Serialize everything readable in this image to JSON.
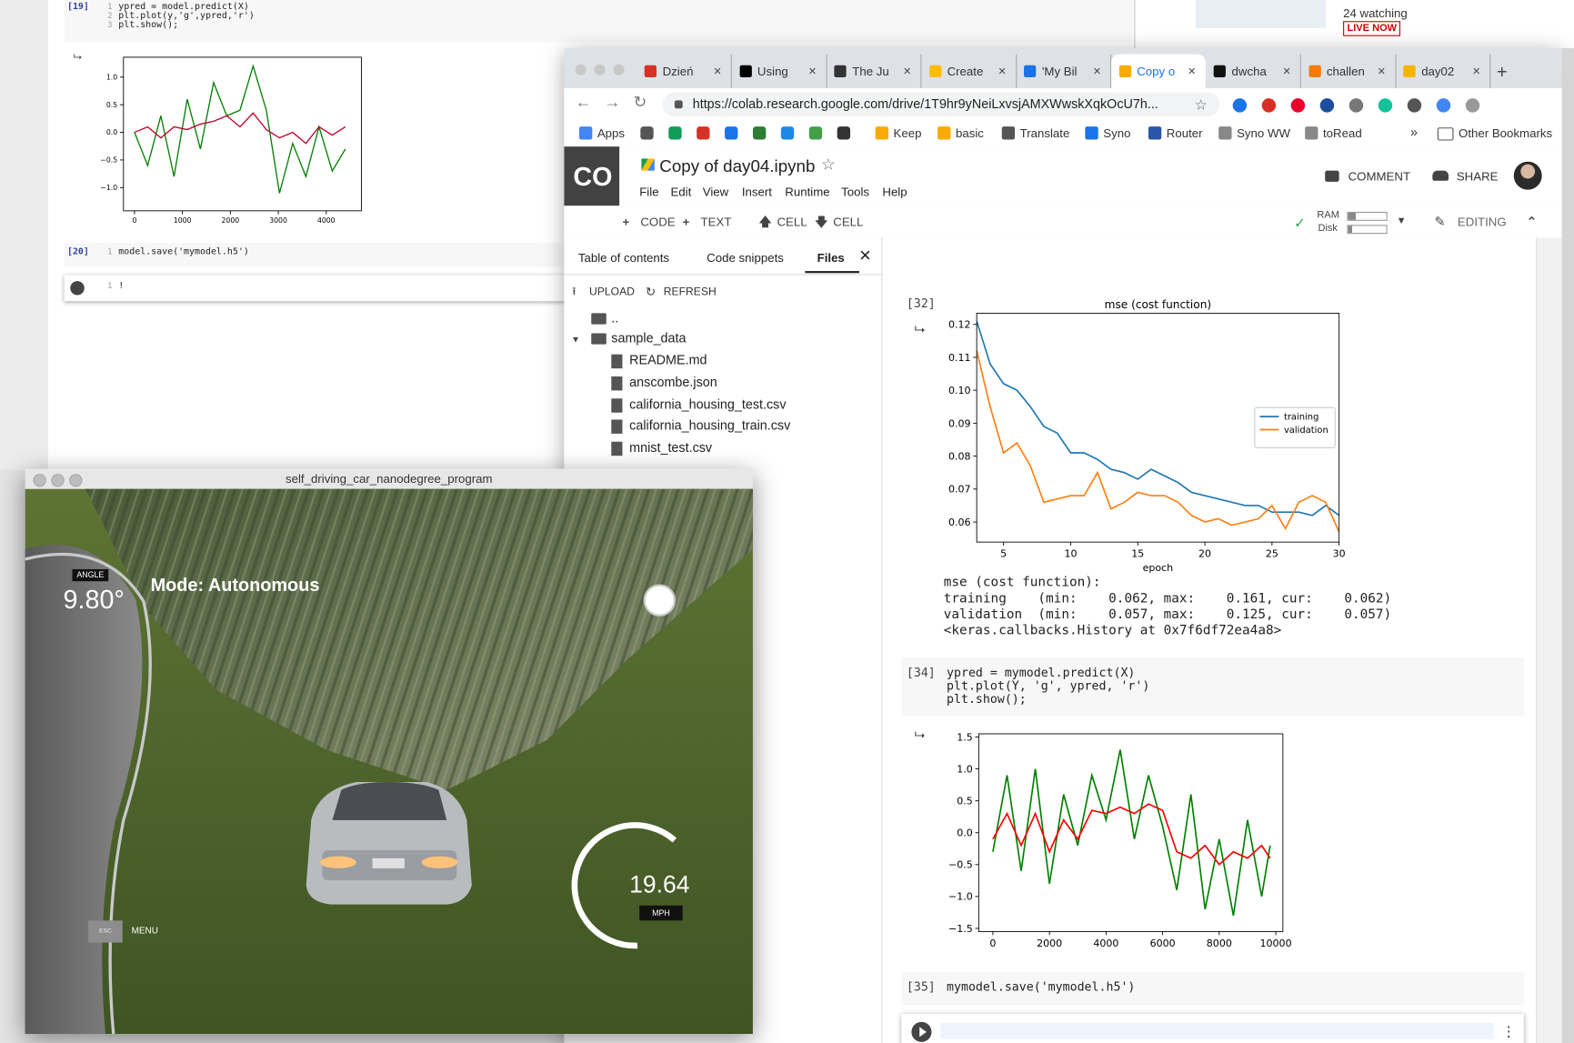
{
  "jupyter": {
    "cell19": {
      "prompt": "[19]",
      "line_numbers": [
        "1",
        "2",
        "3"
      ],
      "lines": [
        "ypred = model.predict(X)",
        "plt.plot(y,'g',ypred,'r')",
        "plt.show();"
      ]
    },
    "cell20": {
      "prompt": "[20]",
      "line_numbers": [
        "1"
      ],
      "lines": [
        "model.save('mymodel.h5')"
      ]
    },
    "cell21": {
      "line_numbers": [
        "1"
      ],
      "lines": [
        "!"
      ]
    },
    "chart": {
      "type": "line",
      "x": [
        0,
        275,
        550,
        825,
        1100,
        1375,
        1650,
        1925,
        2200,
        2475,
        2750,
        3025,
        3300,
        3575,
        3850,
        4125,
        4400
      ],
      "series": [
        {
          "name": "y",
          "color": "#008000",
          "values": [
            0.0,
            -0.6,
            0.3,
            -0.8,
            0.6,
            -0.3,
            0.9,
            0.3,
            0.4,
            1.2,
            0.4,
            -1.1,
            -0.2,
            -0.8,
            0.1,
            -0.7,
            -0.3
          ]
        },
        {
          "name": "ypred",
          "color": "#c0002a",
          "values": [
            0,
            0.1,
            -0.1,
            0.1,
            0.05,
            0.15,
            0.2,
            0.3,
            0.1,
            0.35,
            0.05,
            -0.1,
            0.0,
            -0.2,
            0.1,
            -0.05,
            0.1
          ]
        }
      ],
      "xlim": [
        -230,
        4733
      ],
      "ylim": [
        -1.42,
        1.36
      ],
      "xticks": [
        0,
        1000,
        2000,
        3000,
        4000
      ],
      "yticks": [
        {
          "value": 1,
          "label": "1.0"
        },
        0.5,
        {
          "value": 0,
          "label": "0.0"
        },
        {
          "value": -0.5,
          "label": "−0.5"
        },
        {
          "value": -1,
          "label": "−1.0"
        }
      ]
    }
  },
  "youtube": {
    "watching": "24 watching",
    "live": "LIVE NOW"
  },
  "browser": {
    "tabs": [
      {
        "label": "Dzień"
      },
      {
        "label": "Using"
      },
      {
        "label": "The Ju"
      },
      {
        "label": "Create"
      },
      {
        "label": "'My Bil"
      },
      {
        "label": "Copy o"
      },
      {
        "label": "dwcha"
      },
      {
        "label": "challen"
      },
      {
        "label": "day02"
      }
    ],
    "active_tab": 5,
    "url": "https://colab.research.google.com/drive/1T9hr9yNeiLxvsjAMXWwskXqkOcU7h...",
    "bookmarks": [
      "Apps",
      "Keep",
      "basic",
      "Translate",
      "Syno",
      "Router",
      "Syno WW",
      "toRead"
    ],
    "more": "»",
    "other": "Other Bookmarks"
  },
  "colab": {
    "logo": "CO",
    "title": "Copy of day04.ipynb",
    "menu": [
      "File",
      "Edit",
      "View",
      "Insert",
      "Runtime",
      "Tools",
      "Help"
    ],
    "comment": "COMMENT",
    "share": "SHARE",
    "toolbar": [
      "CODE",
      "TEXT",
      "CELL",
      "CELL"
    ],
    "ram": "RAM",
    "disk": "Disk",
    "editing": "EDITING",
    "sidebar": {
      "tabs": [
        "Table of contents",
        "Code snippets",
        "Files"
      ],
      "active": 2,
      "upload": "UPLOAD",
      "refresh": "REFRESH",
      "parent": "..",
      "folder": "sample_data",
      "files": [
        "README.md",
        "anscombe.json",
        "california_housing_test.csv",
        "california_housing_train.csv",
        "mnist_test.csv"
      ]
    },
    "cell32": {
      "prompt": "[32]",
      "output": [
        "mse (cost function):",
        "training    (min:    0.062, max:    0.161, cur:    0.062)",
        "validation  (min:    0.057, max:    0.125, cur:    0.057)",
        "<keras.callbacks.History at 0x7f6df72ea4a8>"
      ]
    },
    "cell34": {
      "prompt": "[34]",
      "lines": [
        "ypred = mymodel.predict(X)",
        "plt.plot(Y, 'g', ypred, 'r')",
        "plt.show();"
      ]
    },
    "cell35": {
      "prompt": "[35]",
      "lines": [
        "mymodel.save('mymodel.h5')"
      ]
    }
  },
  "mse_chart": {
    "type": "line",
    "title": "mse (cost function)",
    "xlabel": "epoch",
    "x": [
      3,
      4,
      5,
      6,
      7,
      8,
      9,
      10,
      11,
      12,
      13,
      14,
      15,
      16,
      17,
      18,
      19,
      20,
      21,
      22,
      23,
      24,
      25,
      26,
      27,
      28,
      29,
      30
    ],
    "series": [
      {
        "name": "training",
        "color": "#1f77b4",
        "values": [
          0.121,
          0.108,
          0.102,
          0.1,
          0.095,
          0.089,
          0.087,
          0.081,
          0.081,
          0.079,
          0.076,
          0.075,
          0.073,
          0.076,
          0.074,
          0.072,
          0.069,
          0.068,
          0.067,
          0.066,
          0.065,
          0.065,
          0.063,
          0.063,
          0.063,
          0.062,
          0.065,
          0.062
        ]
      },
      {
        "name": "validation",
        "color": "#ff7f0e",
        "values": [
          0.112,
          0.095,
          0.081,
          0.084,
          0.077,
          0.066,
          0.067,
          0.068,
          0.068,
          0.075,
          0.064,
          0.066,
          0.069,
          0.068,
          0.068,
          0.066,
          0.062,
          0.06,
          0.061,
          0.059,
          0.06,
          0.061,
          0.065,
          0.058,
          0.066,
          0.068,
          0.066,
          0.057
        ]
      }
    ],
    "xlim": [
      3,
      30
    ],
    "ylim": [
      0.0539,
      0.1234
    ],
    "xticks": [
      5,
      10,
      15,
      20,
      25,
      30
    ],
    "yticks": [
      0.06,
      0.07,
      0.08,
      0.09,
      {
        "value": 0.1,
        "label": "0.10"
      },
      0.11,
      0.12
    ],
    "legend": "center right"
  },
  "predict_chart": {
    "type": "line",
    "x": [
      0,
      500,
      1000,
      1500,
      2000,
      2500,
      3000,
      3500,
      4000,
      4500,
      5000,
      5500,
      6000,
      6500,
      7000,
      7500,
      8000,
      8500,
      9000,
      9500,
      9800
    ],
    "series": [
      {
        "name": "Y",
        "color": "#008000",
        "values": [
          -0.3,
          0.9,
          -0.6,
          1.0,
          -0.8,
          0.6,
          -0.2,
          0.9,
          0.2,
          1.3,
          -0.1,
          0.9,
          0.1,
          -0.9,
          0.6,
          -1.2,
          -0.1,
          -1.3,
          0.2,
          -1.0,
          -0.2
        ]
      },
      {
        "name": "ypred",
        "color": "#ff0000",
        "values": [
          -0.1,
          0.3,
          -0.2,
          0.3,
          -0.3,
          0.2,
          -0.1,
          0.35,
          0.3,
          0.4,
          0.3,
          0.45,
          0.35,
          -0.3,
          -0.4,
          -0.2,
          -0.5,
          -0.3,
          -0.4,
          -0.2,
          -0.4
        ]
      }
    ],
    "xlim": [
      -500,
      10250
    ],
    "ylim": [
      -1.55,
      1.55
    ],
    "xticks": [
      0,
      2000,
      4000,
      6000,
      8000,
      10000
    ],
    "yticks": [
      1.5,
      {
        "value": 1,
        "label": "1.0"
      },
      0.5,
      {
        "value": 0,
        "label": "0.0"
      },
      {
        "value": -0.5,
        "label": "−0.5"
      },
      {
        "value": -1,
        "label": "−1.0"
      },
      {
        "value": -1.5,
        "label": "−1.5"
      }
    ]
  },
  "simulator": {
    "title": "self_driving_car_nanodegree_program",
    "angle_label": "ANGLE",
    "angle": "9.80°",
    "mode": "Mode: Autonomous",
    "speed": "19.64",
    "unit": "MPH",
    "esc": "ESC",
    "menu": "MENU"
  }
}
